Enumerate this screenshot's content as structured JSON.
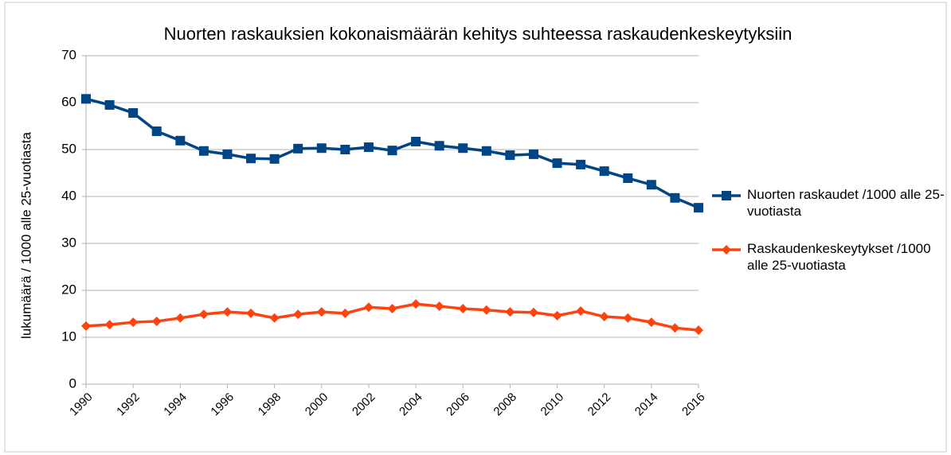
{
  "chart_data": {
    "type": "line",
    "title": "Nuorten raskauksien kokonaismäärän kehitys suhteessa raskaudenkeskeytyksiin",
    "y_label": "lukumäärä / 1000 alle 25-vuotiasta",
    "x": [
      1990,
      1991,
      1992,
      1993,
      1994,
      1995,
      1996,
      1997,
      1998,
      1999,
      2000,
      2001,
      2002,
      2003,
      2004,
      2005,
      2006,
      2007,
      2008,
      2009,
      2010,
      2011,
      2012,
      2013,
      2014,
      2015,
      2016
    ],
    "series": [
      {
        "name": "Nuorten raskaudet /1000 alle 25-vuotiasta",
        "color": "#004586",
        "marker": "square",
        "values": [
          60.8,
          59.5,
          57.8,
          53.9,
          51.9,
          49.7,
          49.0,
          48.1,
          48.0,
          50.2,
          50.3,
          50.0,
          50.5,
          49.8,
          51.7,
          50.8,
          50.3,
          49.7,
          48.8,
          49.0,
          47.1,
          46.8,
          45.4,
          43.9,
          42.5,
          39.7,
          37.6
        ]
      },
      {
        "name": "Raskaudenkeskeytykset /1000 alle 25-vuotiasta",
        "color": "#ff420e",
        "marker": "diamond",
        "values": [
          12.4,
          12.7,
          13.2,
          13.4,
          14.1,
          14.9,
          15.4,
          15.1,
          14.1,
          14.9,
          15.4,
          15.1,
          16.4,
          16.1,
          17.1,
          16.6,
          16.1,
          15.8,
          15.4,
          15.3,
          14.6,
          15.6,
          14.4,
          14.1,
          13.2,
          12.0,
          11.5
        ]
      }
    ],
    "xlim": [
      1990,
      2016
    ],
    "xticks": [
      1990,
      1992,
      1994,
      1996,
      1998,
      2000,
      2002,
      2004,
      2006,
      2008,
      2010,
      2012,
      2014,
      2016
    ],
    "ylim": [
      0,
      70
    ],
    "yticks": [
      0,
      10,
      20,
      30,
      40,
      50,
      60,
      70
    ],
    "grid": true,
    "legend": "right"
  }
}
